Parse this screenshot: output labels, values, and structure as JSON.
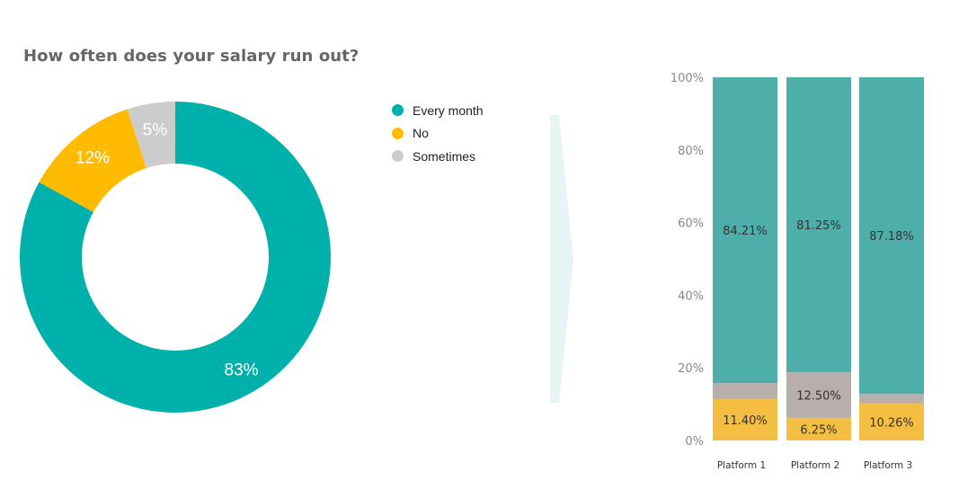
{
  "chart_data": [
    {
      "type": "pie",
      "title": "How often does your salary run out?",
      "categories": [
        "Every month",
        "No",
        "Sometimes"
      ],
      "values": [
        83,
        12,
        5
      ],
      "value_labels": [
        "83%",
        "12%",
        "5%"
      ],
      "colors": [
        "#00b0aa",
        "#ffbb00",
        "#cccccc"
      ],
      "legend": "right"
    },
    {
      "type": "bar",
      "stacked": true,
      "categories": [
        "Platform 1",
        "Platform 2",
        "Platform 3"
      ],
      "series": [
        {
          "values": [
            11.4,
            6.25,
            10.26
          ],
          "labels": [
            "11.40%",
            "6.25%",
            "10.26%"
          ],
          "color": "#f4be42"
        },
        {
          "values": [
            4.39,
            12.5,
            2.56
          ],
          "labels": [
            "",
            "12.50%",
            ""
          ],
          "color": "#b8aeab"
        },
        {
          "values": [
            84.21,
            81.25,
            87.18
          ],
          "labels": [
            "84.21%",
            "81.25%",
            "87.18%"
          ],
          "color": "#4eaeaa"
        }
      ],
      "y_ticks": [
        "0%",
        "20%",
        "40%",
        "60%",
        "80%",
        "100%"
      ],
      "ylim": [
        0,
        100
      ],
      "grid": false
    }
  ],
  "colors": {
    "arrow": "#e6f5f4"
  }
}
